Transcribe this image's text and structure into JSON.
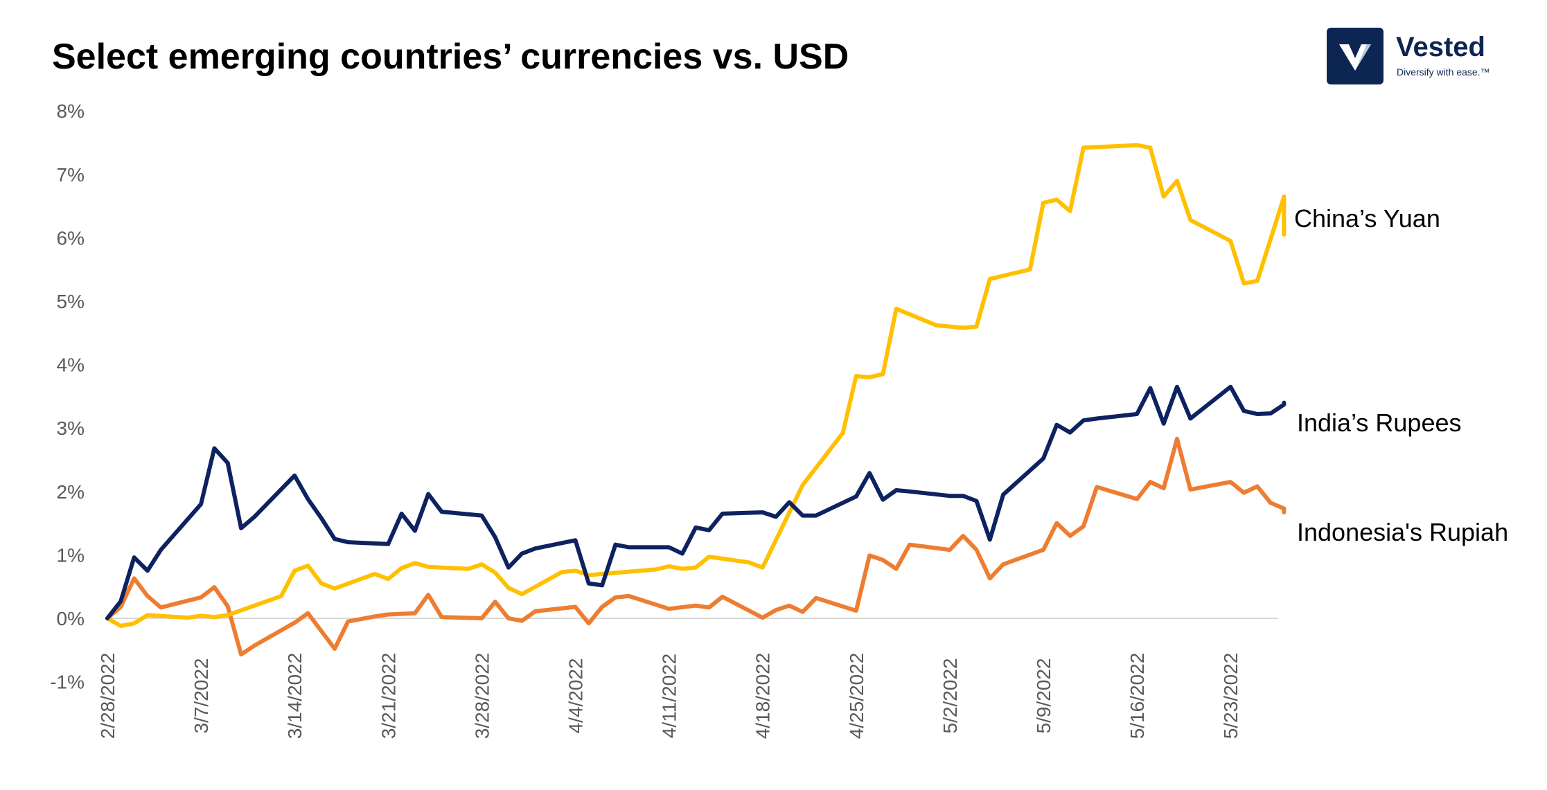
{
  "title": "Select emerging countries’ currencies vs. USD",
  "logo": {
    "name": "Vested",
    "tagline": "Diversify with ease.™"
  },
  "colors": {
    "china": "#ffc000",
    "india": "#0d2260",
    "indonesia": "#ed7d31",
    "zero_line": "#d9d9d9",
    "brand": "#0d2553"
  },
  "chart_data": {
    "type": "line",
    "title": "Select emerging countries’ currencies vs. USD",
    "xlabel": "",
    "ylabel": "",
    "ylim": [
      -0.01,
      0.08
    ],
    "y_ticks": [
      {
        "value": 0.08,
        "label": "8%"
      },
      {
        "value": 0.07,
        "label": "7%"
      },
      {
        "value": 0.06,
        "label": "6%"
      },
      {
        "value": 0.05,
        "label": "5%"
      },
      {
        "value": 0.04,
        "label": "4%"
      },
      {
        "value": 0.03,
        "label": "3%"
      },
      {
        "value": 0.02,
        "label": "2%"
      },
      {
        "value": 0.01,
        "label": "1%"
      },
      {
        "value": 0.0,
        "label": "0%"
      },
      {
        "value": -0.01,
        "label": "-1%"
      }
    ],
    "x_ticks": [
      "2/28/2022",
      "3/7/2022",
      "3/14/2022",
      "3/21/2022",
      "3/28/2022",
      "4/4/2022",
      "4/11/2022",
      "4/18/2022",
      "4/25/2022",
      "5/2/2022",
      "5/9/2022",
      "5/16/2022",
      "5/23/2022"
    ],
    "grid": false,
    "series": [
      {
        "name": "China’s Yuan",
        "color": "#ffc000",
        "points": [
          [
            "2/28/2022",
            0.0
          ],
          [
            "3/1/2022",
            -0.0012
          ],
          [
            "3/2/2022",
            -0.0008
          ],
          [
            "3/3/2022",
            0.0005
          ],
          [
            "3/6/2022",
            0.0001
          ],
          [
            "3/7/2022",
            0.0004
          ],
          [
            "3/8/2022",
            0.0002
          ],
          [
            "3/9/2022",
            0.0005
          ],
          [
            "3/13/2022",
            0.0035
          ],
          [
            "3/14/2022",
            0.0075
          ],
          [
            "3/15/2022",
            0.0083
          ],
          [
            "3/16/2022",
            0.0055
          ],
          [
            "3/17/2022",
            0.0047
          ],
          [
            "3/20/2022",
            0.007
          ],
          [
            "3/21/2022",
            0.0062
          ],
          [
            "3/22/2022",
            0.0079
          ],
          [
            "3/23/2022",
            0.0087
          ],
          [
            "3/24/2022",
            0.0081
          ],
          [
            "3/27/2022",
            0.0078
          ],
          [
            "3/28/2022",
            0.0085
          ],
          [
            "3/29/2022",
            0.0072
          ],
          [
            "3/30/2022",
            0.0048
          ],
          [
            "3/31/2022",
            0.0038
          ],
          [
            "4/3/2022",
            0.0073
          ],
          [
            "4/4/2022",
            0.0075
          ],
          [
            "4/5/2022",
            0.0068
          ],
          [
            "4/6/2022",
            0.007
          ],
          [
            "4/10/2022",
            0.0077
          ],
          [
            "4/11/2022",
            0.0082
          ],
          [
            "4/12/2022",
            0.0078
          ],
          [
            "4/13/2022",
            0.008
          ],
          [
            "4/14/2022",
            0.0097
          ],
          [
            "4/17/2022",
            0.0088
          ],
          [
            "4/18/2022",
            0.008
          ],
          [
            "4/21/2022",
            0.021
          ],
          [
            "4/24/2022",
            0.0292
          ],
          [
            "4/25/2022",
            0.0382
          ],
          [
            "4/26/2022",
            0.038
          ],
          [
            "4/27/2022",
            0.0385
          ],
          [
            "4/28/2022",
            0.0488
          ],
          [
            "5/1/2022",
            0.0462
          ],
          [
            "5/2/2022",
            0.046
          ],
          [
            "5/3/2022",
            0.0458
          ],
          [
            "5/4/2022",
            0.046
          ],
          [
            "5/5/2022",
            0.0535
          ],
          [
            "5/8/2022",
            0.055
          ],
          [
            "5/9/2022",
            0.0655
          ],
          [
            "5/10/2022",
            0.066
          ],
          [
            "5/11/2022",
            0.0642
          ],
          [
            "5/12/2022",
            0.0742
          ],
          [
            "5/15/2022",
            0.0745
          ],
          [
            "5/16/2022",
            0.0746
          ],
          [
            "5/17/2022",
            0.0742
          ],
          [
            "5/18/2022",
            0.0665
          ],
          [
            "5/19/2022",
            0.069
          ],
          [
            "5/20/2022",
            0.0628
          ],
          [
            "5/23/2022",
            0.0595
          ],
          [
            "5/24/2022",
            0.0528
          ],
          [
            "5/25/2022",
            0.0532
          ],
          [
            "5/26/2022",
            0.0598
          ],
          [
            "5/27/2022",
            0.0665
          ],
          [
            "5/27/2022",
            0.0605
          ]
        ]
      },
      {
        "name": "India’s Rupees",
        "color": "#0d2260",
        "points": [
          [
            "2/28/2022",
            0.0
          ],
          [
            "3/1/2022",
            0.0027
          ],
          [
            "3/2/2022",
            0.0096
          ],
          [
            "3/3/2022",
            0.0075
          ],
          [
            "3/4/2022",
            0.0108
          ],
          [
            "3/7/2022",
            0.018
          ],
          [
            "3/8/2022",
            0.0268
          ],
          [
            "3/9/2022",
            0.0245
          ],
          [
            "3/10/2022",
            0.0142
          ],
          [
            "3/11/2022",
            0.016
          ],
          [
            "3/14/2022",
            0.0225
          ],
          [
            "3/15/2022",
            0.0188
          ],
          [
            "3/16/2022",
            0.0158
          ],
          [
            "3/17/2022",
            0.0125
          ],
          [
            "3/18/2022",
            0.012
          ],
          [
            "3/21/2022",
            0.0117
          ],
          [
            "3/22/2022",
            0.0165
          ],
          [
            "3/23/2022",
            0.0138
          ],
          [
            "3/24/2022",
            0.0196
          ],
          [
            "3/25/2022",
            0.0168
          ],
          [
            "3/28/2022",
            0.0162
          ],
          [
            "3/29/2022",
            0.0128
          ],
          [
            "3/30/2022",
            0.008
          ],
          [
            "3/31/2022",
            0.0102
          ],
          [
            "4/1/2022",
            0.011
          ],
          [
            "4/4/2022",
            0.0123
          ],
          [
            "4/5/2022",
            0.0055
          ],
          [
            "4/6/2022",
            0.0052
          ],
          [
            "4/7/2022",
            0.0116
          ],
          [
            "4/8/2022",
            0.0112
          ],
          [
            "4/11/2022",
            0.0112
          ],
          [
            "4/12/2022",
            0.0102
          ],
          [
            "4/13/2022",
            0.0143
          ],
          [
            "4/14/2022",
            0.0139
          ],
          [
            "4/15/2022",
            0.0165
          ],
          [
            "4/18/2022",
            0.0167
          ],
          [
            "4/19/2022",
            0.016
          ],
          [
            "4/20/2022",
            0.0183
          ],
          [
            "4/21/2022",
            0.0162
          ],
          [
            "4/22/2022",
            0.0162
          ],
          [
            "4/25/2022",
            0.0192
          ],
          [
            "4/26/2022",
            0.0229
          ],
          [
            "4/27/2022",
            0.0187
          ],
          [
            "4/28/2022",
            0.0202
          ],
          [
            "4/29/2022",
            0.02
          ],
          [
            "5/2/2022",
            0.0193
          ],
          [
            "5/3/2022",
            0.0193
          ],
          [
            "5/4/2022",
            0.0185
          ],
          [
            "5/5/2022",
            0.0124
          ],
          [
            "5/6/2022",
            0.0195
          ],
          [
            "5/9/2022",
            0.0252
          ],
          [
            "5/10/2022",
            0.0305
          ],
          [
            "5/11/2022",
            0.0293
          ],
          [
            "5/12/2022",
            0.0312
          ],
          [
            "5/13/2022",
            0.0315
          ],
          [
            "5/16/2022",
            0.0322
          ],
          [
            "5/17/2022",
            0.0363
          ],
          [
            "5/18/2022",
            0.0307
          ],
          [
            "5/19/2022",
            0.0365
          ],
          [
            "5/20/2022",
            0.0315
          ],
          [
            "5/23/2022",
            0.0365
          ],
          [
            "5/24/2022",
            0.0327
          ],
          [
            "5/25/2022",
            0.0322
          ],
          [
            "5/26/2022",
            0.0323
          ],
          [
            "5/27/2022",
            0.0337
          ],
          [
            "5/27/2022",
            0.034
          ]
        ]
      },
      {
        "name": "Indonesia's Rupiah",
        "color": "#ed7d31",
        "points": [
          [
            "2/28/2022",
            0.0
          ],
          [
            "3/1/2022",
            0.0018
          ],
          [
            "3/2/2022",
            0.0063
          ],
          [
            "3/3/2022",
            0.0035
          ],
          [
            "3/4/2022",
            0.0017
          ],
          [
            "3/7/2022",
            0.0033
          ],
          [
            "3/8/2022",
            0.0049
          ],
          [
            "3/9/2022",
            0.0019
          ],
          [
            "3/10/2022",
            -0.0057
          ],
          [
            "3/11/2022",
            -0.0043
          ],
          [
            "3/14/2022",
            -0.0007
          ],
          [
            "3/15/2022",
            0.0008
          ],
          [
            "3/17/2022",
            -0.0048
          ],
          [
            "3/18/2022",
            -0.0005
          ],
          [
            "3/20/2022",
            0.0003
          ],
          [
            "3/21/2022",
            0.0006
          ],
          [
            "3/23/2022",
            0.0008
          ],
          [
            "3/24/2022",
            0.0037
          ],
          [
            "3/25/2022",
            0.0002
          ],
          [
            "3/28/2022",
            0.0
          ],
          [
            "3/29/2022",
            0.0026
          ],
          [
            "3/30/2022",
            0.0
          ],
          [
            "3/31/2022",
            -0.0004
          ],
          [
            "4/1/2022",
            0.0011
          ],
          [
            "4/4/2022",
            0.0018
          ],
          [
            "4/5/2022",
            -0.0008
          ],
          [
            "4/6/2022",
            0.0018
          ],
          [
            "4/7/2022",
            0.0033
          ],
          [
            "4/8/2022",
            0.0035
          ],
          [
            "4/11/2022",
            0.0015
          ],
          [
            "4/13/2022",
            0.002
          ],
          [
            "4/14/2022",
            0.0017
          ],
          [
            "4/15/2022",
            0.0034
          ],
          [
            "4/18/2022",
            0.0001
          ],
          [
            "4/19/2022",
            0.0013
          ],
          [
            "4/20/2022",
            0.002
          ],
          [
            "4/21/2022",
            0.001
          ],
          [
            "4/22/2022",
            0.0032
          ],
          [
            "4/25/2022",
            0.0012
          ],
          [
            "4/26/2022",
            0.0099
          ],
          [
            "4/27/2022",
            0.0092
          ],
          [
            "4/28/2022",
            0.0078
          ],
          [
            "4/29/2022",
            0.0116
          ],
          [
            "5/2/2022",
            0.0108
          ],
          [
            "5/3/2022",
            0.013
          ],
          [
            "5/4/2022",
            0.0108
          ],
          [
            "5/5/2022",
            0.0063
          ],
          [
            "5/6/2022",
            0.0085
          ],
          [
            "5/9/2022",
            0.0108
          ],
          [
            "5/10/2022",
            0.015
          ],
          [
            "5/11/2022",
            0.013
          ],
          [
            "5/12/2022",
            0.0145
          ],
          [
            "5/13/2022",
            0.0207
          ],
          [
            "5/16/2022",
            0.0188
          ],
          [
            "5/17/2022",
            0.0215
          ],
          [
            "5/18/2022",
            0.0205
          ],
          [
            "5/19/2022",
            0.0283
          ],
          [
            "5/20/2022",
            0.0203
          ],
          [
            "5/23/2022",
            0.0215
          ],
          [
            "5/24/2022",
            0.0198
          ],
          [
            "5/25/2022",
            0.0208
          ],
          [
            "5/26/2022",
            0.0182
          ],
          [
            "5/27/2022",
            0.0173
          ],
          [
            "5/27/2022",
            0.0167
          ]
        ]
      }
    ]
  }
}
